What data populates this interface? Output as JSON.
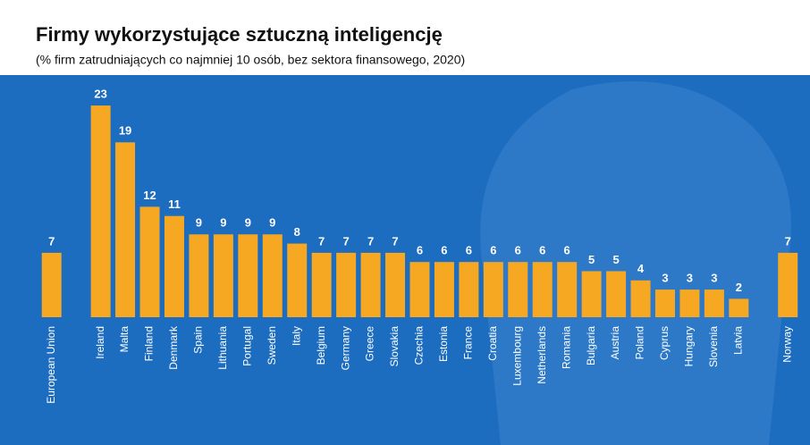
{
  "chart_data": {
    "type": "bar",
    "title": "Firmy wykorzystujące sztuczną inteligencję",
    "subtitle": "(% firm zatrudniających co najmniej 10 osób, bez sektora finansowego, 2020)",
    "categories": [
      "European Union",
      "Ireland",
      "Malta",
      "Finland",
      "Denmark",
      "Spain",
      "Lithuania",
      "Portugal",
      "Sweden",
      "Italy",
      "Belgium",
      "Germany",
      "Greece",
      "Slovakia",
      "Czechia",
      "Estonia",
      "France",
      "Croatia",
      "Luxembourg",
      "Netherlands",
      "Romania",
      "Bulgaria",
      "Austria",
      "Poland",
      "Cyprus",
      "Hungary",
      "Slovenia",
      "Latvia",
      "Norway"
    ],
    "values": [
      7,
      23,
      19,
      12,
      11,
      9,
      9,
      9,
      9,
      8,
      7,
      7,
      7,
      7,
      6,
      6,
      6,
      6,
      6,
      6,
      6,
      5,
      5,
      4,
      3,
      3,
      3,
      2,
      7
    ],
    "color": "#f7a823"
  }
}
